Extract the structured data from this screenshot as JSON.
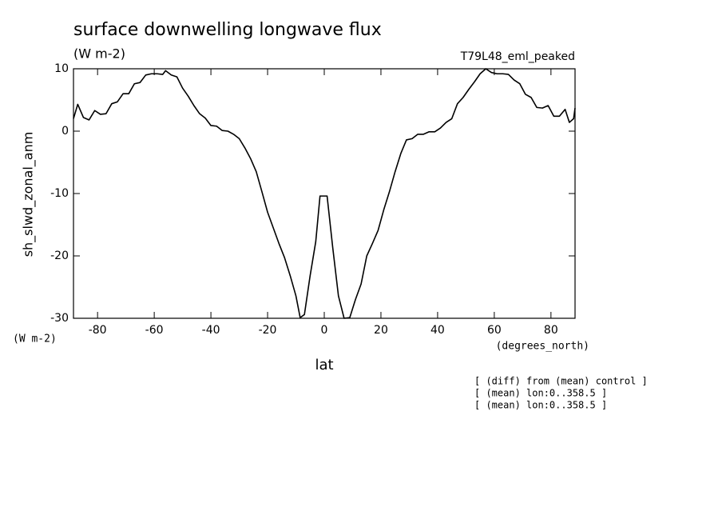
{
  "chart_data": {
    "type": "line",
    "title": "surface downwelling longwave flux",
    "subtitle": "(W m-2)",
    "dataset": "T79L48_eml_peaked",
    "y_label": "sh_slwd_zonal_anm",
    "y_units": "(W m-2)",
    "x_label": "lat",
    "x_units": "(degrees_north)",
    "annotations": [
      "[ (diff) from (mean) control ]",
      "[ (mean) lon:0..358.5 ]",
      "[ (mean) lon:0..358.5 ]"
    ],
    "color": "#000000",
    "xlim": [
      -88.5,
      88.5
    ],
    "ylim": [
      -30,
      10
    ],
    "xticks": [
      -80,
      -60,
      -40,
      -20,
      0,
      20,
      40,
      60,
      80
    ],
    "yticks": [
      -30,
      -20,
      -10,
      0,
      10
    ],
    "x": [
      -88.5,
      -87,
      -85,
      -83,
      -81,
      -79,
      -77,
      -75,
      -73,
      -71,
      -69,
      -67,
      -65,
      -63,
      -61,
      -59,
      -57,
      -56,
      -54,
      -52,
      -50,
      -48,
      -46,
      -44,
      -42,
      -40,
      -38,
      -36,
      -34,
      -32,
      -30,
      -28,
      -26,
      -24,
      -22,
      -20,
      -18,
      -16,
      -14,
      -12,
      -10,
      -8.5,
      -7,
      -5,
      -3,
      -1.5,
      0,
      1,
      3,
      5,
      7,
      9,
      11,
      13,
      15,
      17,
      19,
      21,
      23,
      25,
      27,
      29,
      31,
      33,
      35,
      37,
      39,
      41,
      43,
      45,
      47,
      49,
      51,
      53,
      55,
      57,
      59,
      61,
      63,
      65,
      67,
      69,
      71,
      73,
      75,
      77,
      79,
      81,
      83,
      85,
      86.5,
      88,
      88.5
    ],
    "values": [
      2,
      4.3,
      2.2,
      1.8,
      3.3,
      2.7,
      2.8,
      4.4,
      4.7,
      6,
      6,
      7.6,
      7.8,
      9,
      9.2,
      9.2,
      9.1,
      9.7,
      9,
      8.7,
      6.9,
      5.6,
      4.1,
      2.8,
      2.1,
      0.9,
      0.8,
      0.1,
      0,
      -0.5,
      -1.2,
      -2.7,
      -4.4,
      -6.5,
      -9.7,
      -13,
      -15.5,
      -18,
      -20.3,
      -23.2,
      -26.4,
      -29.9,
      -29.4,
      -23.2,
      -17.7,
      -10.4,
      -10.4,
      -10.4,
      -18.7,
      -26.4,
      -30,
      -29.9,
      -27,
      -24.5,
      -20,
      -18,
      -15.9,
      -12.6,
      -9.7,
      -6.5,
      -3.6,
      -1.4,
      -1.2,
      -0.5,
      -0.5,
      -0.1,
      -0.1,
      0.5,
      1.4,
      2,
      4.4,
      5.4,
      6.7,
      7.9,
      9.2,
      10,
      9.4,
      9.2,
      9.2,
      9.1,
      8.2,
      7.6,
      5.9,
      5.4,
      3.8,
      3.7,
      4.1,
      2.4,
      2.4,
      3.5,
      1.4,
      2,
      3.7
    ]
  }
}
